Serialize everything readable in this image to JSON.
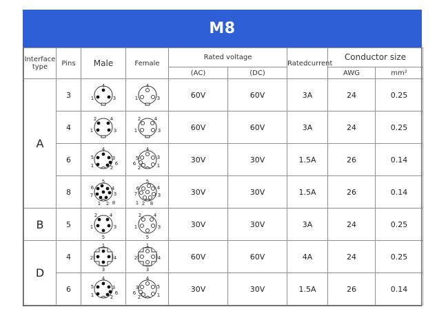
{
  "title": "M8",
  "headers": {
    "interface_type": "Interface type",
    "pins": "Pins",
    "male": "Male",
    "female": "Female",
    "rated_voltage": "Rated voltage",
    "ac": "(AC)",
    "dc": "(DC)",
    "rated_current": "Ratedcurrent",
    "conductor_size": "Conductor size",
    "awg": "AWG",
    "mm2": "mm²"
  },
  "groups": {
    "A": "A",
    "B": "B",
    "D": "D"
  },
  "rows": [
    {
      "type": "A",
      "pins": "3",
      "ac": "60V",
      "dc": "60V",
      "current": "3A",
      "awg": "24",
      "mm2": "0.25",
      "male_labels": [
        "4",
        "1",
        "3"
      ],
      "female_labels": [
        "4",
        "3",
        "1"
      ]
    },
    {
      "type": "A",
      "pins": "4",
      "ac": "60V",
      "dc": "60V",
      "current": "3A",
      "awg": "24",
      "mm2": "0.25",
      "male_labels": [
        "2",
        "4",
        "1",
        "3"
      ],
      "female_labels": [
        "4",
        "2",
        "3",
        "1"
      ]
    },
    {
      "type": "A",
      "pins": "6",
      "ac": "30V",
      "dc": "30V",
      "current": "1.5A",
      "awg": "26",
      "mm2": "0.14",
      "male_labels": [
        "4",
        "5",
        "3",
        "6",
        "1",
        "2"
      ],
      "female_labels": [
        "4",
        "3",
        "5",
        "6",
        "1",
        "2"
      ]
    },
    {
      "type": "A",
      "pins": "8",
      "ac": "30V",
      "dc": "30V",
      "current": "1.5A",
      "awg": "26",
      "mm2": "0.14",
      "male_labels": [
        "5",
        "6",
        "4",
        "7",
        "3",
        "1",
        "2",
        "8"
      ],
      "female_labels": [
        "5",
        "4",
        "6",
        "3",
        "7",
        "8",
        "2",
        "1"
      ]
    },
    {
      "type": "B",
      "pins": "5",
      "ac": "30V",
      "dc": "30V",
      "current": "3A",
      "awg": "24",
      "mm2": "0.25",
      "male_labels": [
        "2",
        "4",
        "1",
        "3",
        "5"
      ],
      "female_labels": [
        "4",
        "2",
        "3",
        "1",
        "5"
      ]
    },
    {
      "type": "D",
      "pins": "4",
      "ac": "60V",
      "dc": "60V",
      "current": "4A",
      "awg": "24",
      "mm2": "0.25",
      "male_labels": [
        "1",
        "2",
        "4",
        "3"
      ],
      "female_labels": [
        "1",
        "4",
        "2",
        "3"
      ]
    },
    {
      "type": "D",
      "pins": "6",
      "ac": "30V",
      "dc": "30V",
      "current": "1.5A",
      "awg": "26",
      "mm2": "0.14",
      "male_labels": [
        "4",
        "5",
        "3",
        "6",
        "1",
        "2"
      ],
      "female_labels": [
        "4",
        "5",
        "3",
        "6",
        "1",
        "2"
      ]
    }
  ]
}
